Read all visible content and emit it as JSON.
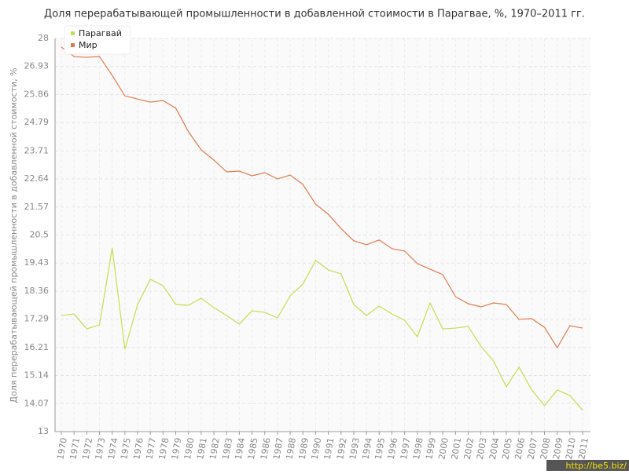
{
  "chart_data": {
    "type": "line",
    "title": "Доля перерабатывающей промышленности в добавленной стоимости в Парагвае, %, 1970–2011 гг.",
    "y_label": "Доля перерабатывающей промышленности в добавленной стоимости, %",
    "watermark": "http://be5.biz/",
    "categories": [
      "1970",
      "1971",
      "1972",
      "1973",
      "1974",
      "1975",
      "1976",
      "1977",
      "1978",
      "1979",
      "1980",
      "1981",
      "1982",
      "1983",
      "1984",
      "1985",
      "1986",
      "1987",
      "1988",
      "1989",
      "1990",
      "1991",
      "1992",
      "1993",
      "1994",
      "1995",
      "1996",
      "1997",
      "1998",
      "1999",
      "2000",
      "2001",
      "2002",
      "2003",
      "2004",
      "2005",
      "2006",
      "2007",
      "2008",
      "2009",
      "2010",
      "2011"
    ],
    "series": [
      {
        "name": "Парагвай",
        "color": "#c2e04e",
        "values": [
          17.43,
          17.49,
          16.92,
          17.07,
          20.01,
          16.14,
          17.85,
          18.81,
          18.57,
          17.85,
          17.82,
          18.09,
          17.73,
          17.43,
          17.1,
          17.61,
          17.55,
          17.34,
          18.18,
          18.63,
          19.53,
          19.17,
          19.02,
          17.85,
          17.43,
          17.79,
          17.49,
          17.25,
          16.62,
          17.91,
          16.92,
          16.95,
          17.01,
          16.26,
          15.69,
          14.71,
          15.46,
          14.59,
          13.99,
          14.59,
          14.38,
          13.81
        ]
      },
      {
        "name": "Мир",
        "color": "#e07a4e",
        "values": [
          27.67,
          27.31,
          27.28,
          27.31,
          26.59,
          25.81,
          25.69,
          25.57,
          25.63,
          25.34,
          24.44,
          23.75,
          23.36,
          22.91,
          22.94,
          22.76,
          22.88,
          22.64,
          22.79,
          22.43,
          21.68,
          21.29,
          20.75,
          20.28,
          20.13,
          20.31,
          19.98,
          19.89,
          19.41,
          19.2,
          18.99,
          18.15,
          17.88,
          17.76,
          17.91,
          17.85,
          17.28,
          17.31,
          16.98,
          16.2,
          17.04,
          16.95
        ]
      }
    ],
    "ylim": [
      13,
      28
    ],
    "yticks": [
      13,
      14.07,
      15.14,
      16.21,
      17.29,
      18.36,
      19.43,
      20.5,
      21.57,
      22.64,
      23.71,
      24.79,
      25.86,
      26.93,
      28
    ],
    "grid": true,
    "legend": "top-left"
  }
}
